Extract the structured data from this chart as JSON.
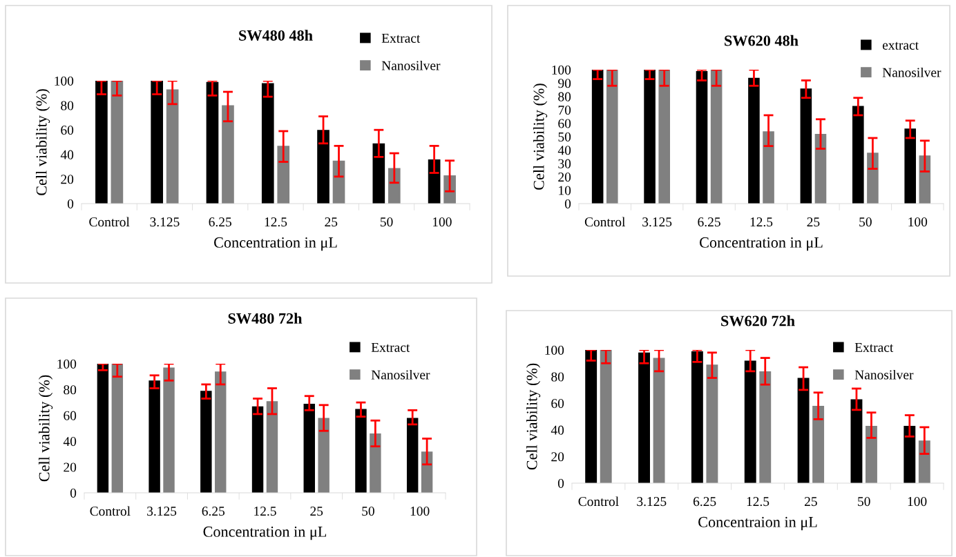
{
  "chart_data": [
    {
      "type": "bar",
      "title": "SW480 48h",
      "xlabel": "Concentration in μL",
      "ylabel": "Cell viability (%)",
      "categories": [
        "Control",
        "3.125",
        "6.25",
        "12.5",
        "25",
        "50",
        "100"
      ],
      "ylim": [
        0,
        100
      ],
      "yticks": [
        0,
        20,
        40,
        60,
        80,
        100
      ],
      "legend": "top right",
      "grid": false,
      "series": [
        {
          "name": "Extract",
          "color": "#000000",
          "values": [
            100,
            100,
            99,
            98,
            60,
            49,
            36
          ],
          "errors": [
            [
              89,
              100
            ],
            [
              89,
              100
            ],
            [
              88,
              100
            ],
            [
              87,
              100
            ],
            [
              49,
              71
            ],
            [
              38,
              60
            ],
            [
              25,
              47
            ]
          ]
        },
        {
          "name": "Nanosilver",
          "color": "#808080",
          "values": [
            100,
            93,
            80,
            47,
            35,
            29,
            23
          ],
          "errors": [
            [
              88,
              100
            ],
            [
              81,
              100
            ],
            [
              67,
              91
            ],
            [
              34,
              59
            ],
            [
              22,
              47
            ],
            [
              17,
              41
            ],
            [
              10,
              35
            ]
          ]
        }
      ]
    },
    {
      "type": "bar",
      "title": "SW620 48h",
      "xlabel": "Concentration in μL",
      "ylabel": "Cell viability (%)",
      "categories": [
        "Control",
        "3.125",
        "6.25",
        "12.5",
        "25",
        "50",
        "100"
      ],
      "ylim": [
        0,
        100
      ],
      "yticks": [
        0,
        10,
        20,
        30,
        40,
        50,
        60,
        70,
        80,
        90,
        100
      ],
      "legend": "top right",
      "grid": false,
      "series": [
        {
          "name": "extract",
          "color": "#000000",
          "values": [
            100,
            100,
            99,
            94,
            86,
            73,
            56
          ],
          "errors": [
            [
              93,
              100
            ],
            [
              93,
              100
            ],
            [
              92,
              100
            ],
            [
              88,
              100
            ],
            [
              79,
              92
            ],
            [
              66,
              79
            ],
            [
              49,
              62
            ]
          ]
        },
        {
          "name": "Nanosilver",
          "color": "#808080",
          "values": [
            100,
            100,
            100,
            54,
            52,
            38,
            36
          ],
          "errors": [
            [
              88,
              100
            ],
            [
              88,
              100
            ],
            [
              88,
              100
            ],
            [
              43,
              66
            ],
            [
              41,
              63
            ],
            [
              26,
              49
            ],
            [
              24,
              47
            ]
          ]
        }
      ]
    },
    {
      "type": "bar",
      "title": "SW480 72h",
      "xlabel": "Concentration in μL",
      "ylabel": "Cell viability (%)",
      "categories": [
        "Control",
        "3.125",
        "6.25",
        "12.5",
        "25",
        "50",
        "100"
      ],
      "ylim": [
        0,
        100
      ],
      "yticks": [
        0,
        20,
        40,
        60,
        80,
        100
      ],
      "legend": "top right",
      "grid": false,
      "series": [
        {
          "name": "Extract",
          "color": "#000000",
          "values": [
            100,
            87,
            79,
            67,
            69,
            65,
            58
          ],
          "errors": [
            [
              95,
              100
            ],
            [
              81,
              91
            ],
            [
              73,
              84
            ],
            [
              61,
              73
            ],
            [
              64,
              75
            ],
            [
              59,
              70
            ],
            [
              53,
              64
            ]
          ]
        },
        {
          "name": "Nanosilver",
          "color": "#808080",
          "values": [
            100,
            97,
            94,
            71,
            58,
            46,
            32
          ],
          "errors": [
            [
              90,
              100
            ],
            [
              87,
              100
            ],
            [
              84,
              100
            ],
            [
              61,
              81
            ],
            [
              48,
              68
            ],
            [
              36,
              56
            ],
            [
              22,
              42
            ]
          ]
        }
      ]
    },
    {
      "type": "bar",
      "title": "SW620 72h",
      "xlabel": "Concentraion in μL",
      "ylabel": "Cell viability (%)",
      "categories": [
        "Control",
        "3.125",
        "6.25",
        "12.5",
        "25",
        "50",
        "100"
      ],
      "ylim": [
        0,
        100
      ],
      "yticks": [
        0,
        20,
        40,
        60,
        80,
        100
      ],
      "legend": "top right",
      "grid": false,
      "series": [
        {
          "name": "Extract",
          "color": "#000000",
          "values": [
            100,
            98,
            99,
            92,
            79,
            63,
            43
          ],
          "errors": [
            [
              92,
              100
            ],
            [
              90,
              100
            ],
            [
              91,
              100
            ],
            [
              84,
              100
            ],
            [
              70,
              87
            ],
            [
              55,
              71
            ],
            [
              35,
              51
            ]
          ]
        },
        {
          "name": "Nanosilver",
          "color": "#808080",
          "values": [
            100,
            94,
            89,
            84,
            58,
            43,
            32
          ],
          "errors": [
            [
              90,
              100
            ],
            [
              84,
              100
            ],
            [
              79,
              98
            ],
            [
              74,
              94
            ],
            [
              48,
              68
            ],
            [
              34,
              53
            ],
            [
              22,
              42
            ]
          ]
        }
      ]
    }
  ]
}
